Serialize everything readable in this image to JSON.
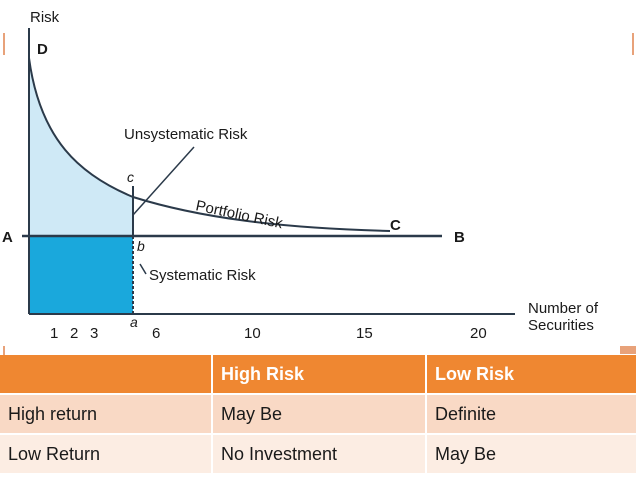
{
  "diagram": {
    "y_axis_title": "Risk",
    "x_axis_title_line1": "Number of",
    "x_axis_title_line2": "Securities",
    "point_labels": {
      "D": "D",
      "A": "A",
      "B": "B",
      "C": "C",
      "c": "c",
      "b": "b",
      "a": "a"
    },
    "annotations": {
      "unsystematic": "Unsystematic Risk",
      "portfolio": "Portfolio Risk",
      "systematic": "Systematic Risk"
    },
    "x_ticks": [
      "1",
      "2",
      "3",
      "6",
      "10",
      "15",
      "20"
    ],
    "colors": {
      "unsystematic_fill": "#cfe9f6",
      "systematic_fill": "#1aa8dc",
      "curve": "#2b3a4a"
    }
  },
  "table": {
    "headers": [
      "",
      "High Risk",
      "Low Risk"
    ],
    "rows": [
      [
        "High return",
        "May Be",
        "Definite"
      ],
      [
        "Low Return",
        "No Investment",
        "May Be"
      ]
    ],
    "colors": {
      "header_bg": "#ef8731",
      "row1_bg": "#f9d9c5",
      "row2_bg": "#fcede3"
    }
  }
}
